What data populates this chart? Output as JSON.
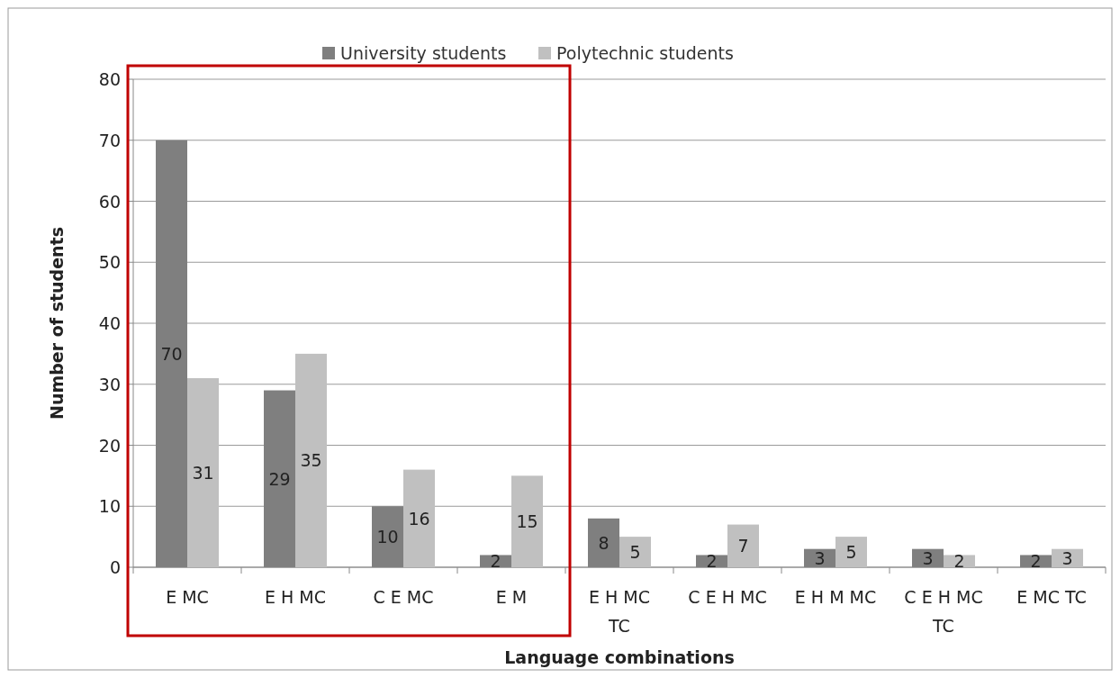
{
  "chart_data": {
    "type": "bar",
    "xlabel": "Language combinations",
    "ylabel": "Number of students",
    "categories": [
      "E MC",
      "E H MC",
      "C E MC",
      "E M",
      "E H MC TC",
      "C E H MC",
      "E H M MC",
      "C E H MC TC",
      "E MC TC"
    ],
    "series": [
      {
        "name": "University students",
        "color": "#7f7f7f",
        "values": [
          70,
          29,
          10,
          2,
          8,
          2,
          3,
          3,
          2
        ]
      },
      {
        "name": "Polytechnic students",
        "color": "#c0c0c0",
        "values": [
          31,
          35,
          16,
          15,
          5,
          7,
          5,
          2,
          3
        ]
      }
    ],
    "ylim": [
      0,
      80
    ],
    "yticks": [
      0,
      10,
      20,
      30,
      40,
      50,
      60,
      70,
      80
    ],
    "grid": "y",
    "legend": "top",
    "data_labels": true
  }
}
